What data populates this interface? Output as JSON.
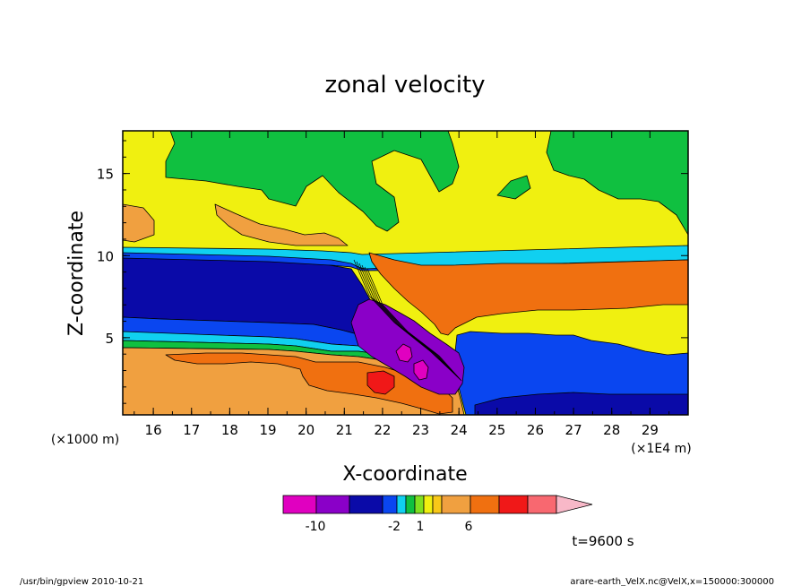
{
  "chart_data": {
    "type": "heatmap",
    "title": "zonal velocity",
    "xlabel": "X-coordinate",
    "ylabel": "Z-coordinate",
    "x_unit_left": "(×1000 m)",
    "x_unit_right": "(×1E4 m)",
    "xlim": [
      15.2,
      30.0
    ],
    "ylim": [
      0.3,
      17.6
    ],
    "x_ticks": [
      "16",
      "17",
      "18",
      "19",
      "20",
      "21",
      "22",
      "23",
      "24",
      "25",
      "26",
      "27",
      "28",
      "29"
    ],
    "y_ticks": [
      "5",
      "10",
      "15"
    ],
    "colorbar": {
      "colors": [
        "#e000c0",
        "#8a00c8",
        "#0a0aa8",
        "#0a46f0",
        "#10d0f0",
        "#10c040",
        "#80e020",
        "#f0f010",
        "#f8c818",
        "#f0a040",
        "#f07010",
        "#f01818",
        "#f86870",
        "#f8b8c8"
      ],
      "labels": [
        "-10",
        "-2",
        "1",
        "6"
      ]
    },
    "time_label": "t=9600 s",
    "regions": [
      {
        "name": "bg-yellow",
        "value": 1.5,
        "color": "#f0f010"
      },
      {
        "name": "upper-left-green",
        "value": -0.5,
        "color": "#10c040"
      },
      {
        "name": "upper-right-green",
        "value": -0.5,
        "color": "#10c040"
      },
      {
        "name": "upper-mid-green",
        "value": -0.5,
        "color": "#10c040"
      },
      {
        "name": "left-light-orange",
        "value": 3,
        "color": "#f0a040"
      },
      {
        "name": "upper-cyan-band",
        "value": -1.5,
        "color": "#10d0f0"
      },
      {
        "name": "upper-blue-band",
        "value": -3,
        "color": "#0a46f0"
      },
      {
        "name": "left-navy-jet",
        "value": -6,
        "color": "#0a0aa8"
      },
      {
        "name": "lower-blue-band",
        "value": -3,
        "color": "#0a46f0"
      },
      {
        "name": "lower-cyan-band",
        "value": -1.5,
        "color": "#10d0f0"
      },
      {
        "name": "lower-green-band",
        "value": -0.5,
        "color": "#10c040"
      },
      {
        "name": "lower-light-orange",
        "value": 3,
        "color": "#f0a040"
      },
      {
        "name": "lower-orange",
        "value": 5,
        "color": "#f07010"
      },
      {
        "name": "red-core",
        "value": 7,
        "color": "#f01818"
      },
      {
        "name": "right-orange-layer",
        "value": 5,
        "color": "#f07010"
      },
      {
        "name": "right-blue-flow",
        "value": -3,
        "color": "#0a46f0"
      },
      {
        "name": "right-navy-bottom",
        "value": -6,
        "color": "#0a0aa8"
      },
      {
        "name": "purple-core",
        "value": -9,
        "color": "#8a00c8"
      },
      {
        "name": "magenta-core",
        "value": -11,
        "color": "#e000c0"
      }
    ]
  },
  "footer": {
    "left": "/usr/bin/gpview 2010-10-21",
    "right": "arare-earth_VelX.nc@VelX,x=150000:300000"
  }
}
